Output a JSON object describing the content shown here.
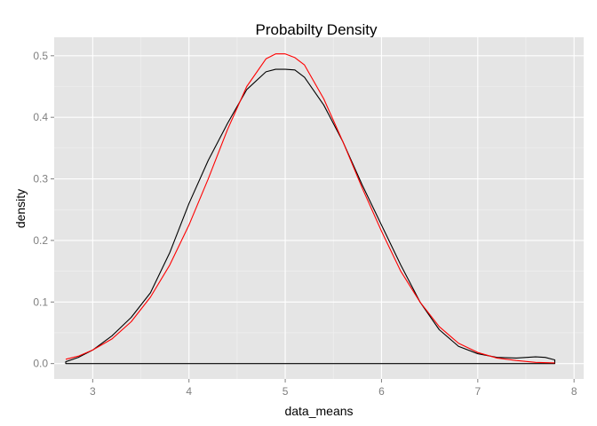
{
  "chart_data": {
    "type": "line",
    "title": "Probabilty Density",
    "xlabel": "data_means",
    "ylabel": "density",
    "xlim": [
      2.6,
      8.1
    ],
    "ylim": [
      -0.025,
      0.53
    ],
    "x_ticks": [
      3,
      4,
      5,
      6,
      7,
      8
    ],
    "y_ticks": [
      0.0,
      0.1,
      0.2,
      0.3,
      0.4,
      0.5
    ],
    "y_tick_labels": [
      "0.0",
      "0.1",
      "0.2",
      "0.3",
      "0.4",
      "0.5"
    ],
    "grid": true,
    "legend": "none",
    "colors": {
      "panel_background": "#e5e5e5",
      "grid_major": "#ffffff",
      "grid_minor": "#f2f2f2",
      "tick_text": "#7f7f7f"
    },
    "series": [
      {
        "color": "#000000",
        "closed_to_baseline": true,
        "x": [
          2.72,
          2.85,
          3.0,
          3.2,
          3.4,
          3.6,
          3.8,
          4.0,
          4.2,
          4.4,
          4.6,
          4.8,
          4.9,
          5.0,
          5.1,
          5.2,
          5.4,
          5.6,
          5.8,
          6.0,
          6.2,
          6.4,
          6.6,
          6.8,
          7.0,
          7.2,
          7.4,
          7.6,
          7.7,
          7.8
        ],
        "y": [
          0.003,
          0.01,
          0.022,
          0.045,
          0.075,
          0.115,
          0.18,
          0.26,
          0.33,
          0.39,
          0.445,
          0.474,
          0.478,
          0.478,
          0.477,
          0.465,
          0.42,
          0.36,
          0.29,
          0.225,
          0.16,
          0.1,
          0.055,
          0.028,
          0.016,
          0.01,
          0.009,
          0.011,
          0.01,
          0.006
        ]
      },
      {
        "color": "#ff0000",
        "closed_to_baseline": false,
        "x": [
          2.72,
          2.85,
          3.0,
          3.2,
          3.4,
          3.6,
          3.8,
          4.0,
          4.2,
          4.4,
          4.6,
          4.8,
          4.9,
          5.0,
          5.1,
          5.2,
          5.4,
          5.6,
          5.8,
          6.0,
          6.2,
          6.4,
          6.6,
          6.8,
          7.0,
          7.2,
          7.4,
          7.6,
          7.8
        ],
        "y": [
          0.007,
          0.012,
          0.022,
          0.04,
          0.068,
          0.108,
          0.16,
          0.225,
          0.3,
          0.38,
          0.45,
          0.495,
          0.503,
          0.503,
          0.497,
          0.485,
          0.43,
          0.36,
          0.285,
          0.215,
          0.15,
          0.1,
          0.06,
          0.033,
          0.018,
          0.009,
          0.005,
          0.002,
          0.001
        ]
      }
    ]
  }
}
